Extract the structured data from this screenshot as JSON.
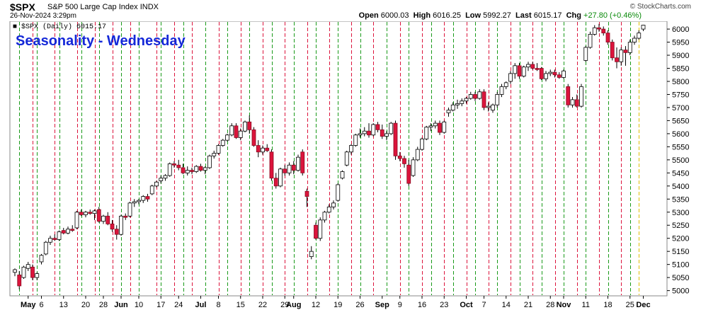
{
  "header": {
    "symbol": "$SPX",
    "name": "S&P 500 Large Cap Index",
    "exchange": "INDX",
    "datetime": "26-Nov-2024 3:29pm",
    "brand": "© StockCharts.com",
    "open_label": "Open",
    "open": "6000.03",
    "high_label": "High",
    "high": "6016.25",
    "low_label": "Low",
    "low": "5992.27",
    "last_label": "Last",
    "last": "6015.17",
    "chg_label": "Chg",
    "chg": "+27.80 (+0.46%)"
  },
  "chart_data": {
    "type": "candlestick",
    "title": "Seasonality - Wednesday",
    "legend": "$SPX (Daily) 6015.17",
    "ylim": [
      4980,
      6030
    ],
    "yticks": [
      5000,
      5050,
      5100,
      5150,
      5200,
      5250,
      5300,
      5350,
      5400,
      5450,
      5500,
      5550,
      5600,
      5650,
      5700,
      5750,
      5800,
      5850,
      5900,
      5950,
      6000
    ],
    "x_labels": [
      {
        "i": 3,
        "text": "May",
        "month": true
      },
      {
        "i": 6,
        "text": "6"
      },
      {
        "i": 11,
        "text": "13"
      },
      {
        "i": 16,
        "text": "20"
      },
      {
        "i": 20,
        "text": "28"
      },
      {
        "i": 24,
        "text": "Jun",
        "month": true
      },
      {
        "i": 28,
        "text": "10"
      },
      {
        "i": 33,
        "text": "17"
      },
      {
        "i": 37,
        "text": "24"
      },
      {
        "i": 42,
        "text": "Jul",
        "month": true
      },
      {
        "i": 46,
        "text": "8"
      },
      {
        "i": 51,
        "text": "15"
      },
      {
        "i": 56,
        "text": "22"
      },
      {
        "i": 61,
        "text": "29"
      },
      {
        "i": 63,
        "text": "Aug",
        "month": true
      },
      {
        "i": 68,
        "text": "12"
      },
      {
        "i": 73,
        "text": "19"
      },
      {
        "i": 78,
        "text": "26"
      },
      {
        "i": 83,
        "text": "Sep",
        "month": true
      },
      {
        "i": 87,
        "text": "9"
      },
      {
        "i": 92,
        "text": "16"
      },
      {
        "i": 97,
        "text": "23"
      },
      {
        "i": 102,
        "text": "Oct",
        "month": true
      },
      {
        "i": 106,
        "text": "7"
      },
      {
        "i": 111,
        "text": "14"
      },
      {
        "i": 116,
        "text": "21"
      },
      {
        "i": 121,
        "text": "28"
      },
      {
        "i": 124,
        "text": "Nov",
        "month": true
      },
      {
        "i": 129,
        "text": "11"
      },
      {
        "i": 134,
        "text": "18"
      },
      {
        "i": 139,
        "text": "25"
      },
      {
        "i": 142,
        "text": "Dec",
        "month": true
      }
    ],
    "weekday_markers": {
      "green": [
        1,
        5,
        10,
        15,
        19,
        24,
        28,
        33,
        38,
        43,
        48,
        53,
        58,
        63,
        68,
        73,
        78,
        84,
        89,
        94,
        99,
        104,
        109,
        114,
        119,
        124,
        129,
        134,
        139
      ],
      "red": [
        4,
        9,
        14,
        18,
        22,
        26,
        32,
        36,
        40,
        46,
        51,
        56,
        61,
        66,
        71,
        76,
        81,
        87,
        92,
        97,
        102,
        107,
        112,
        117,
        122,
        127,
        132,
        137
      ],
      "yellow": [
        141
      ]
    },
    "ohlc": [
      {
        "o": 5070,
        "h": 5085,
        "l": 5055,
        "c": 5080
      },
      {
        "o": 5060,
        "h": 5075,
        "l": 5005,
        "c": 5018
      },
      {
        "o": 5050,
        "h": 5095,
        "l": 5045,
        "c": 5090
      },
      {
        "o": 5085,
        "h": 5110,
        "l": 5075,
        "c": 5100
      },
      {
        "o": 5090,
        "h": 5100,
        "l": 5040,
        "c": 5050
      },
      {
        "o": 5050,
        "h": 5070,
        "l": 5040,
        "c": 5065
      },
      {
        "o": 5110,
        "h": 5140,
        "l": 5100,
        "c": 5135
      },
      {
        "o": 5140,
        "h": 5190,
        "l": 5135,
        "c": 5185
      },
      {
        "o": 5185,
        "h": 5210,
        "l": 5175,
        "c": 5200
      },
      {
        "o": 5200,
        "h": 5215,
        "l": 5190,
        "c": 5195
      },
      {
        "o": 5195,
        "h": 5230,
        "l": 5190,
        "c": 5225
      },
      {
        "o": 5230,
        "h": 5240,
        "l": 5215,
        "c": 5220
      },
      {
        "o": 5220,
        "h": 5245,
        "l": 5215,
        "c": 5235
      },
      {
        "o": 5235,
        "h": 5250,
        "l": 5225,
        "c": 5230
      },
      {
        "o": 5240,
        "h": 5305,
        "l": 5235,
        "c": 5300
      },
      {
        "o": 5300,
        "h": 5310,
        "l": 5285,
        "c": 5290
      },
      {
        "o": 5290,
        "h": 5305,
        "l": 5280,
        "c": 5300
      },
      {
        "o": 5300,
        "h": 5310,
        "l": 5290,
        "c": 5295
      },
      {
        "o": 5295,
        "h": 5310,
        "l": 5270,
        "c": 5305
      },
      {
        "o": 5310,
        "h": 5320,
        "l": 5260,
        "c": 5265
      },
      {
        "o": 5265,
        "h": 5290,
        "l": 5255,
        "c": 5285
      },
      {
        "o": 5285,
        "h": 5300,
        "l": 5250,
        "c": 5255
      },
      {
        "o": 5255,
        "h": 5270,
        "l": 5225,
        "c": 5235
      },
      {
        "o": 5235,
        "h": 5250,
        "l": 5195,
        "c": 5215
      },
      {
        "o": 5215,
        "h": 5290,
        "l": 5210,
        "c": 5285
      },
      {
        "o": 5285,
        "h": 5295,
        "l": 5270,
        "c": 5280
      },
      {
        "o": 5285,
        "h": 5340,
        "l": 5280,
        "c": 5335
      },
      {
        "o": 5335,
        "h": 5350,
        "l": 5320,
        "c": 5340
      },
      {
        "o": 5340,
        "h": 5350,
        "l": 5330,
        "c": 5345
      },
      {
        "o": 5345,
        "h": 5365,
        "l": 5335,
        "c": 5360
      },
      {
        "o": 5360,
        "h": 5370,
        "l": 5340,
        "c": 5350
      },
      {
        "o": 5370,
        "h": 5405,
        "l": 5365,
        "c": 5400
      },
      {
        "o": 5400,
        "h": 5420,
        "l": 5395,
        "c": 5415
      },
      {
        "o": 5420,
        "h": 5440,
        "l": 5410,
        "c": 5430
      },
      {
        "o": 5430,
        "h": 5445,
        "l": 5420,
        "c": 5440
      },
      {
        "o": 5440,
        "h": 5490,
        "l": 5435,
        "c": 5485
      },
      {
        "o": 5485,
        "h": 5495,
        "l": 5470,
        "c": 5480
      },
      {
        "o": 5480,
        "h": 5500,
        "l": 5460,
        "c": 5470
      },
      {
        "o": 5470,
        "h": 5485,
        "l": 5445,
        "c": 5450
      },
      {
        "o": 5450,
        "h": 5475,
        "l": 5440,
        "c": 5460
      },
      {
        "o": 5460,
        "h": 5470,
        "l": 5445,
        "c": 5455
      },
      {
        "o": 5455,
        "h": 5480,
        "l": 5450,
        "c": 5475
      },
      {
        "o": 5475,
        "h": 5485,
        "l": 5455,
        "c": 5460
      },
      {
        "o": 5460,
        "h": 5475,
        "l": 5445,
        "c": 5470
      },
      {
        "o": 5470,
        "h": 5520,
        "l": 5465,
        "c": 5515
      },
      {
        "o": 5515,
        "h": 5535,
        "l": 5505,
        "c": 5525
      },
      {
        "o": 5525,
        "h": 5560,
        "l": 5520,
        "c": 5555
      },
      {
        "o": 5555,
        "h": 5580,
        "l": 5550,
        "c": 5575
      },
      {
        "o": 5575,
        "h": 5600,
        "l": 5570,
        "c": 5595
      },
      {
        "o": 5595,
        "h": 5640,
        "l": 5590,
        "c": 5630
      },
      {
        "o": 5630,
        "h": 5640,
        "l": 5580,
        "c": 5585
      },
      {
        "o": 5585,
        "h": 5620,
        "l": 5575,
        "c": 5610
      },
      {
        "o": 5610,
        "h": 5650,
        "l": 5605,
        "c": 5645
      },
      {
        "o": 5645,
        "h": 5670,
        "l": 5600,
        "c": 5615
      },
      {
        "o": 5615,
        "h": 5625,
        "l": 5550,
        "c": 5555
      },
      {
        "o": 5555,
        "h": 5575,
        "l": 5510,
        "c": 5530
      },
      {
        "o": 5530,
        "h": 5555,
        "l": 5520,
        "c": 5545
      },
      {
        "o": 5545,
        "h": 5560,
        "l": 5530,
        "c": 5535
      },
      {
        "o": 5530,
        "h": 5540,
        "l": 5420,
        "c": 5430
      },
      {
        "o": 5430,
        "h": 5450,
        "l": 5390,
        "c": 5400
      },
      {
        "o": 5400,
        "h": 5470,
        "l": 5395,
        "c": 5465
      },
      {
        "o": 5465,
        "h": 5480,
        "l": 5440,
        "c": 5450
      },
      {
        "o": 5450,
        "h": 5490,
        "l": 5440,
        "c": 5480
      },
      {
        "o": 5480,
        "h": 5495,
        "l": 5445,
        "c": 5460
      },
      {
        "o": 5460,
        "h": 5520,
        "l": 5455,
        "c": 5510
      },
      {
        "o": 5530,
        "h": 5540,
        "l": 5440,
        "c": 5450
      },
      {
        "o": 5380,
        "h": 5390,
        "l": 5320,
        "c": 5360
      },
      {
        "o": 5130,
        "h": 5170,
        "l": 5120,
        "c": 5150
      },
      {
        "o": 5250,
        "h": 5260,
        "l": 5195,
        "c": 5200
      },
      {
        "o": 5200,
        "h": 5280,
        "l": 5190,
        "c": 5270
      },
      {
        "o": 5270,
        "h": 5305,
        "l": 5260,
        "c": 5300
      },
      {
        "o": 5300,
        "h": 5330,
        "l": 5295,
        "c": 5320
      },
      {
        "o": 5320,
        "h": 5345,
        "l": 5310,
        "c": 5335
      },
      {
        "o": 5345,
        "h": 5410,
        "l": 5340,
        "c": 5405
      },
      {
        "o": 5430,
        "h": 5460,
        "l": 5425,
        "c": 5455
      },
      {
        "o": 5480,
        "h": 5535,
        "l": 5475,
        "c": 5530
      },
      {
        "o": 5530,
        "h": 5560,
        "l": 5520,
        "c": 5555
      },
      {
        "o": 5555,
        "h": 5600,
        "l": 5550,
        "c": 5595
      },
      {
        "o": 5595,
        "h": 5620,
        "l": 5585,
        "c": 5600
      },
      {
        "o": 5600,
        "h": 5625,
        "l": 5590,
        "c": 5610
      },
      {
        "o": 5610,
        "h": 5640,
        "l": 5585,
        "c": 5595
      },
      {
        "o": 5595,
        "h": 5640,
        "l": 5590,
        "c": 5635
      },
      {
        "o": 5635,
        "h": 5645,
        "l": 5605,
        "c": 5615
      },
      {
        "o": 5615,
        "h": 5635,
        "l": 5580,
        "c": 5590
      },
      {
        "o": 5590,
        "h": 5610,
        "l": 5575,
        "c": 5600
      },
      {
        "o": 5600,
        "h": 5645,
        "l": 5595,
        "c": 5640
      },
      {
        "o": 5640,
        "h": 5650,
        "l": 5500,
        "c": 5515
      },
      {
        "o": 5515,
        "h": 5530,
        "l": 5495,
        "c": 5505
      },
      {
        "o": 5505,
        "h": 5515,
        "l": 5470,
        "c": 5485
      },
      {
        "o": 5480,
        "h": 5500,
        "l": 5400,
        "c": 5410
      },
      {
        "o": 5440,
        "h": 5510,
        "l": 5435,
        "c": 5500
      },
      {
        "o": 5500,
        "h": 5550,
        "l": 5495,
        "c": 5540
      },
      {
        "o": 5540,
        "h": 5585,
        "l": 5535,
        "c": 5580
      },
      {
        "o": 5580,
        "h": 5630,
        "l": 5575,
        "c": 5625
      },
      {
        "o": 5625,
        "h": 5640,
        "l": 5610,
        "c": 5630
      },
      {
        "o": 5630,
        "h": 5650,
        "l": 5620,
        "c": 5640
      },
      {
        "o": 5640,
        "h": 5650,
        "l": 5595,
        "c": 5605
      },
      {
        "o": 5605,
        "h": 5650,
        "l": 5600,
        "c": 5645
      },
      {
        "o": 5680,
        "h": 5700,
        "l": 5665,
        "c": 5690
      },
      {
        "o": 5690,
        "h": 5720,
        "l": 5685,
        "c": 5710
      },
      {
        "o": 5710,
        "h": 5730,
        "l": 5695,
        "c": 5715
      },
      {
        "o": 5715,
        "h": 5735,
        "l": 5705,
        "c": 5725
      },
      {
        "o": 5725,
        "h": 5740,
        "l": 5715,
        "c": 5735
      },
      {
        "o": 5735,
        "h": 5760,
        "l": 5730,
        "c": 5750
      },
      {
        "o": 5750,
        "h": 5760,
        "l": 5725,
        "c": 5735
      },
      {
        "o": 5735,
        "h": 5770,
        "l": 5730,
        "c": 5760
      },
      {
        "o": 5760,
        "h": 5770,
        "l": 5690,
        "c": 5700
      },
      {
        "o": 5700,
        "h": 5720,
        "l": 5685,
        "c": 5705
      },
      {
        "o": 5690,
        "h": 5715,
        "l": 5680,
        "c": 5710
      },
      {
        "o": 5710,
        "h": 5760,
        "l": 5700,
        "c": 5750
      },
      {
        "o": 5750,
        "h": 5790,
        "l": 5740,
        "c": 5780
      },
      {
        "o": 5780,
        "h": 5800,
        "l": 5770,
        "c": 5795
      },
      {
        "o": 5800,
        "h": 5840,
        "l": 5790,
        "c": 5830
      },
      {
        "o": 5830,
        "h": 5870,
        "l": 5810,
        "c": 5860
      },
      {
        "o": 5860,
        "h": 5870,
        "l": 5810,
        "c": 5820
      },
      {
        "o": 5820,
        "h": 5860,
        "l": 5815,
        "c": 5855
      },
      {
        "o": 5855,
        "h": 5875,
        "l": 5840,
        "c": 5865
      },
      {
        "o": 5865,
        "h": 5875,
        "l": 5845,
        "c": 5850
      },
      {
        "o": 5850,
        "h": 5870,
        "l": 5840,
        "c": 5845
      },
      {
        "o": 5850,
        "h": 5855,
        "l": 5805,
        "c": 5810
      },
      {
        "o": 5810,
        "h": 5840,
        "l": 5800,
        "c": 5830
      },
      {
        "o": 5830,
        "h": 5845,
        "l": 5820,
        "c": 5835
      },
      {
        "o": 5835,
        "h": 5845,
        "l": 5815,
        "c": 5825
      },
      {
        "o": 5825,
        "h": 5835,
        "l": 5810,
        "c": 5815
      },
      {
        "o": 5815,
        "h": 5845,
        "l": 5810,
        "c": 5840
      },
      {
        "o": 5780,
        "h": 5790,
        "l": 5700,
        "c": 5710
      },
      {
        "o": 5710,
        "h": 5740,
        "l": 5700,
        "c": 5730
      },
      {
        "o": 5730,
        "h": 5750,
        "l": 5700,
        "c": 5705
      },
      {
        "o": 5705,
        "h": 5790,
        "l": 5700,
        "c": 5780
      },
      {
        "o": 5880,
        "h": 5935,
        "l": 5875,
        "c": 5930
      },
      {
        "o": 5930,
        "h": 5990,
        "l": 5925,
        "c": 5980
      },
      {
        "o": 5980,
        "h": 6015,
        "l": 5975,
        "c": 6005
      },
      {
        "o": 6005,
        "h": 6020,
        "l": 5990,
        "c": 6000
      },
      {
        "o": 6000,
        "h": 6010,
        "l": 5975,
        "c": 5985
      },
      {
        "o": 5985,
        "h": 5995,
        "l": 5940,
        "c": 5950
      },
      {
        "o": 5950,
        "h": 5960,
        "l": 5880,
        "c": 5890
      },
      {
        "o": 5890,
        "h": 5930,
        "l": 5850,
        "c": 5875
      },
      {
        "o": 5875,
        "h": 5930,
        "l": 5860,
        "c": 5920
      },
      {
        "o": 5920,
        "h": 5935,
        "l": 5860,
        "c": 5910
      },
      {
        "o": 5910,
        "h": 5960,
        "l": 5900,
        "c": 5950
      },
      {
        "o": 5950,
        "h": 5975,
        "l": 5940,
        "c": 5965
      },
      {
        "o": 5965,
        "h": 5995,
        "l": 5960,
        "c": 5985
      },
      {
        "o": 6000,
        "h": 6016,
        "l": 5992,
        "c": 6015
      }
    ]
  },
  "colors": {
    "up": "#ffffff",
    "down": "#dc143c",
    "green": "#1a9a1a",
    "red": "#dc143c",
    "yellow": "#e0c000",
    "title": "#1428d8"
  }
}
